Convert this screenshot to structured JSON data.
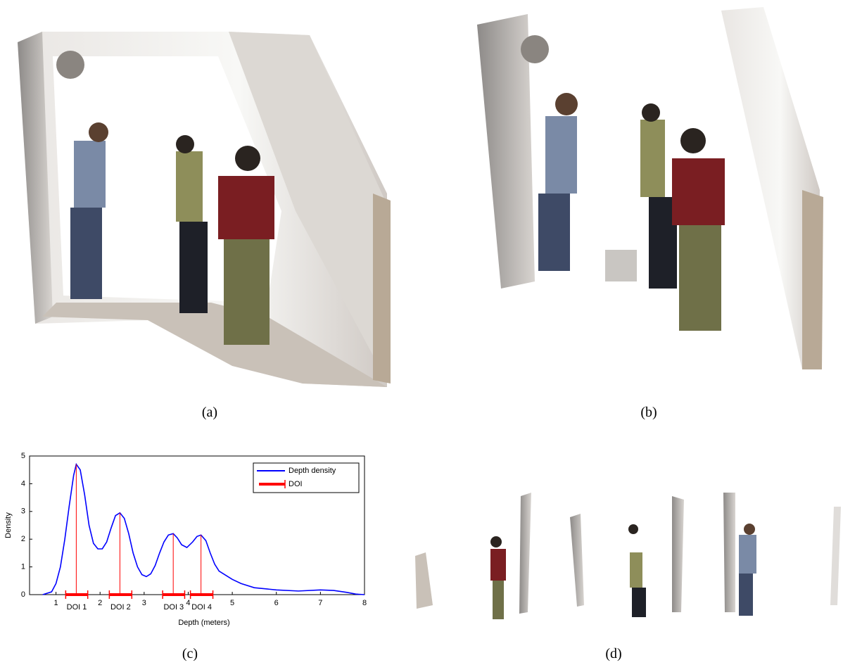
{
  "panels": [
    {
      "caption": "(a)"
    },
    {
      "caption": "(b)"
    },
    {
      "caption": "(c)"
    },
    {
      "caption": "(d)"
    }
  ],
  "chart_data": {
    "type": "line",
    "x_label": "Depth (meters)",
    "y_label": "Density",
    "xlim": [
      0.4,
      8
    ],
    "xticks": [
      1,
      2,
      3,
      4,
      5,
      6,
      7,
      8
    ],
    "ylim": [
      0,
      5
    ],
    "yticks": [
      0,
      1,
      2,
      3,
      4,
      5
    ],
    "legend": "upper right",
    "series": [
      {
        "name": "Depth density",
        "color": "#0000ff",
        "x": [
          0.7,
          0.9,
          1.0,
          1.1,
          1.2,
          1.3,
          1.4,
          1.46,
          1.55,
          1.65,
          1.75,
          1.85,
          1.95,
          2.05,
          2.15,
          2.25,
          2.35,
          2.45,
          2.55,
          2.65,
          2.75,
          2.85,
          2.95,
          3.05,
          3.15,
          3.25,
          3.35,
          3.45,
          3.55,
          3.66,
          3.75,
          3.85,
          3.97,
          4.1,
          4.2,
          4.29,
          4.4,
          4.5,
          4.6,
          4.7,
          4.85,
          5.0,
          5.2,
          5.5,
          6.0,
          6.5,
          7.0,
          7.3,
          7.6,
          7.8,
          8.0
        ],
        "values": [
          0,
          0.1,
          0.4,
          1.0,
          2.0,
          3.2,
          4.3,
          4.7,
          4.5,
          3.6,
          2.5,
          1.85,
          1.65,
          1.65,
          1.9,
          2.4,
          2.85,
          2.95,
          2.75,
          2.2,
          1.5,
          1.0,
          0.72,
          0.65,
          0.75,
          1.05,
          1.5,
          1.9,
          2.15,
          2.2,
          2.05,
          1.8,
          1.7,
          1.9,
          2.1,
          2.15,
          1.95,
          1.5,
          1.1,
          0.85,
          0.7,
          0.55,
          0.4,
          0.25,
          0.17,
          0.13,
          0.17,
          0.15,
          0.08,
          0.02,
          0
        ]
      }
    ],
    "doi": {
      "name": "DOI",
      "color": "#ff0000",
      "intervals": [
        {
          "label": "DOI 1",
          "start": 1.22,
          "end": 1.72,
          "peak_x": 1.46,
          "peak_y": 4.7
        },
        {
          "label": "DOI 2",
          "start": 2.21,
          "end": 2.72,
          "peak_x": 2.45,
          "peak_y": 2.95
        },
        {
          "label": "DOI 3",
          "start": 3.42,
          "end": 3.92,
          "peak_x": 3.66,
          "peak_y": 2.2
        },
        {
          "label": "DOI 4",
          "start": 4.05,
          "end": 4.56,
          "peak_x": 4.29,
          "peak_y": 2.15
        }
      ]
    }
  }
}
